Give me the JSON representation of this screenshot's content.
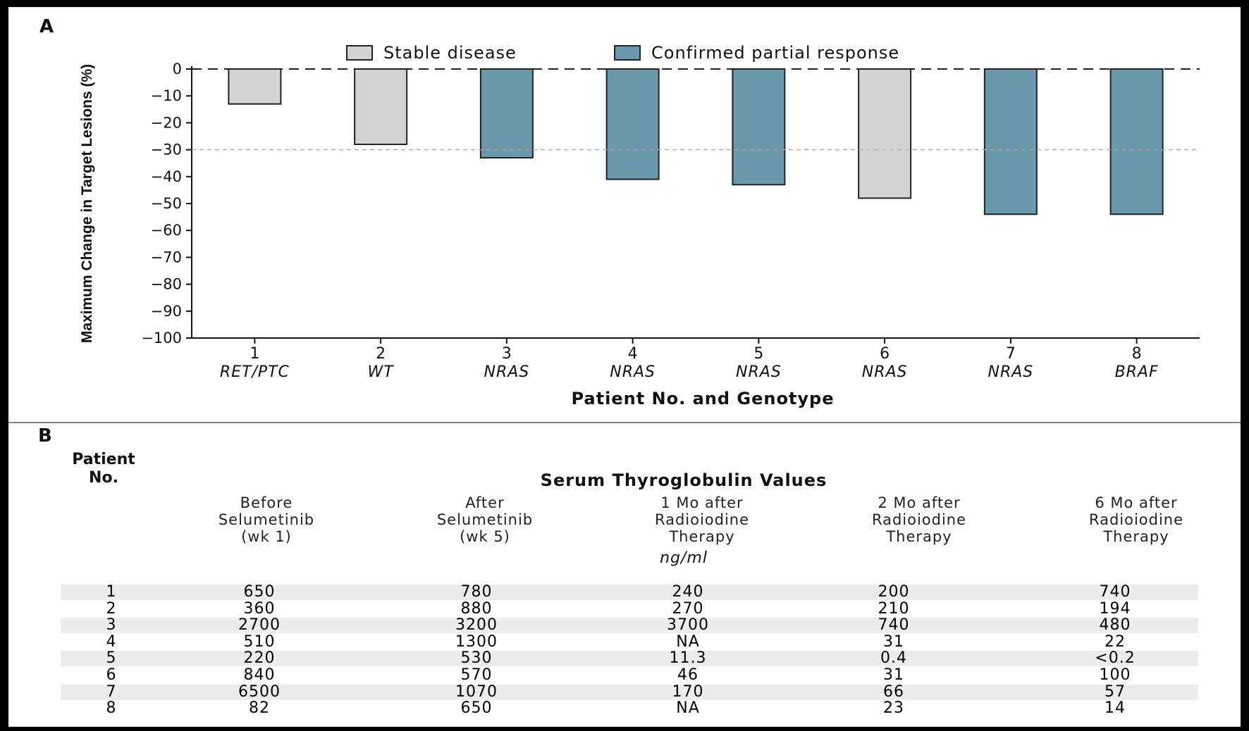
{
  "panel_a": {
    "letter": "A",
    "legend": [
      {
        "label": "Stable disease",
        "color": "#d3d3d3"
      },
      {
        "label": "Confirmed partial response",
        "color": "#6a98ad"
      }
    ]
  },
  "chart_data": {
    "type": "bar",
    "xlabel": "Patient No. and Genotype",
    "ylabel": "Maximum Change in Target Lesions (%)",
    "ylim": [
      -100,
      0
    ],
    "yticks": [
      "0",
      "−10",
      "−20",
      "−30",
      "−40",
      "−50",
      "−60",
      "−70",
      "−80",
      "−90",
      "−100"
    ],
    "categories": [
      {
        "patient": "1",
        "genotype": "RET/PTC"
      },
      {
        "patient": "2",
        "genotype": "WT"
      },
      {
        "patient": "3",
        "genotype": "NRAS"
      },
      {
        "patient": "4",
        "genotype": "NRAS"
      },
      {
        "patient": "5",
        "genotype": "NRAS"
      },
      {
        "patient": "6",
        "genotype": "NRAS"
      },
      {
        "patient": "7",
        "genotype": "NRAS"
      },
      {
        "patient": "8",
        "genotype": "BRAF"
      }
    ],
    "values": [
      -13,
      -28,
      -33,
      -41,
      -43,
      -48,
      -54,
      -54
    ],
    "response": [
      "Stable disease",
      "Stable disease",
      "Confirmed partial response",
      "Confirmed partial response",
      "Confirmed partial response",
      "Stable disease",
      "Confirmed partial response",
      "Confirmed partial response"
    ],
    "reference_lines": [
      0,
      -30
    ]
  },
  "panel_b": {
    "letter": "B",
    "patient_header": [
      "Patient",
      "No."
    ],
    "title": "Serum Thyroglobulin Values",
    "units": "ng/ml",
    "columns": [
      [
        "Before",
        "Selumetinib",
        "(wk 1)"
      ],
      [
        "After",
        "Selumetinib",
        "(wk 5)"
      ],
      [
        "1 Mo after",
        "Radioiodine",
        "Therapy"
      ],
      [
        "2 Mo after",
        "Radioiodine",
        "Therapy"
      ],
      [
        "6 Mo after",
        "Radioiodine",
        "Therapy"
      ]
    ],
    "rows": [
      [
        "1",
        "650",
        "780",
        "240",
        "200",
        "740"
      ],
      [
        "2",
        "360",
        "880",
        "270",
        "210",
        "194"
      ],
      [
        "3",
        "2700",
        "3200",
        "3700",
        "740",
        "480"
      ],
      [
        "4",
        "510",
        "1300",
        "NA",
        "31",
        "22"
      ],
      [
        "5",
        "220",
        "530",
        "11.3",
        "0.4",
        "<0.2"
      ],
      [
        "6",
        "840",
        "570",
        "46",
        "31",
        "100"
      ],
      [
        "7",
        "6500",
        "1070",
        "170",
        "66",
        "57"
      ],
      [
        "8",
        "82",
        "650",
        "NA",
        "23",
        "14"
      ]
    ]
  }
}
